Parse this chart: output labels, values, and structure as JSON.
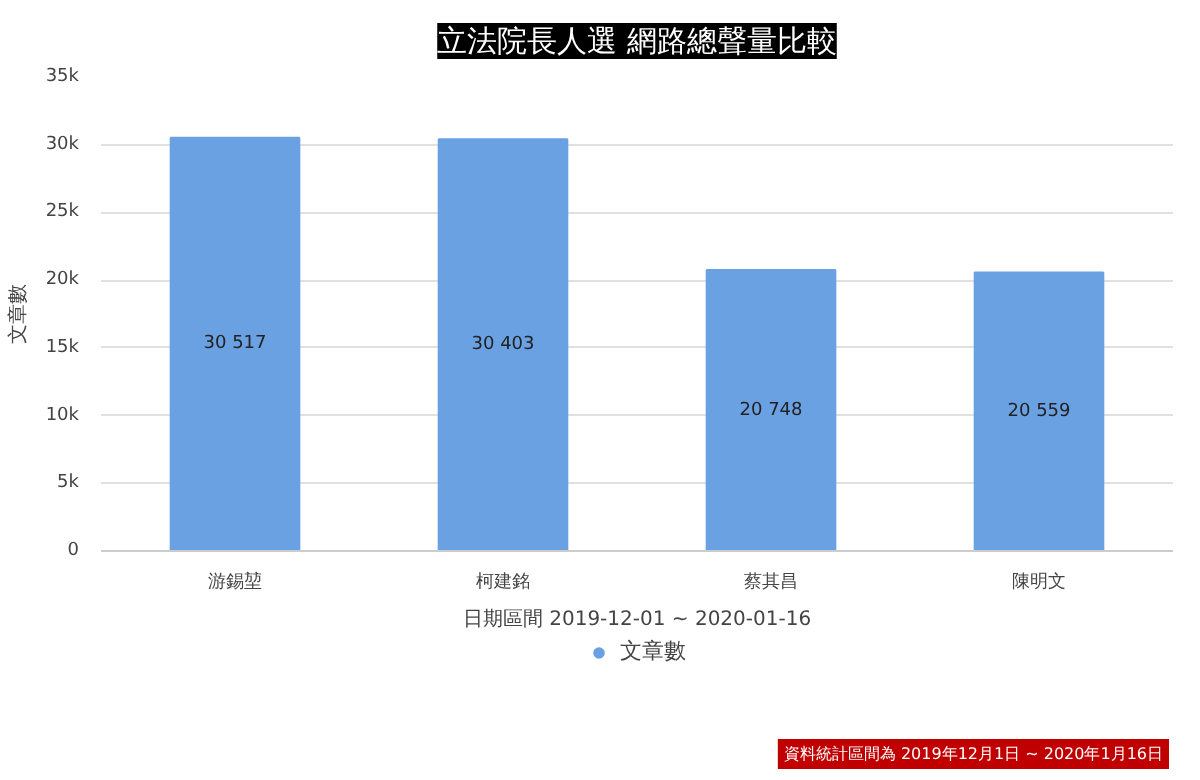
{
  "chart_data": {
    "type": "bar",
    "title": "立法院長人選 網路總聲量比較",
    "xlabel": "日期區間 2019-12-01 ~ 2020-01-16",
    "ylabel": "文章數",
    "categories": [
      "游錫堃",
      "柯建銘",
      "蔡其昌",
      "陳明文"
    ],
    "series": [
      {
        "name": "文章數",
        "color": "#6aa1e3",
        "values": [
          30517,
          30403,
          20748,
          20559
        ],
        "value_labels": [
          "30 517",
          "30 403",
          "20 748",
          "20 559"
        ]
      }
    ],
    "ylim": [
      0,
      35000
    ],
    "yticks": [
      0,
      {
        "value": 5000,
        "label": "5k"
      },
      {
        "value": 10000,
        "label": "10k"
      },
      {
        "value": 15000,
        "label": "15k"
      },
      {
        "value": 20000,
        "label": "20k"
      },
      {
        "value": 25000,
        "label": "25k"
      },
      {
        "value": 30000,
        "label": "30k"
      },
      {
        "value": 35000,
        "label": "35k"
      }
    ],
    "grid": "y",
    "legend": "bottom",
    "annotations": [
      "資料統計區間為 2019年12月1日 ~ 2020年1月16日"
    ]
  }
}
